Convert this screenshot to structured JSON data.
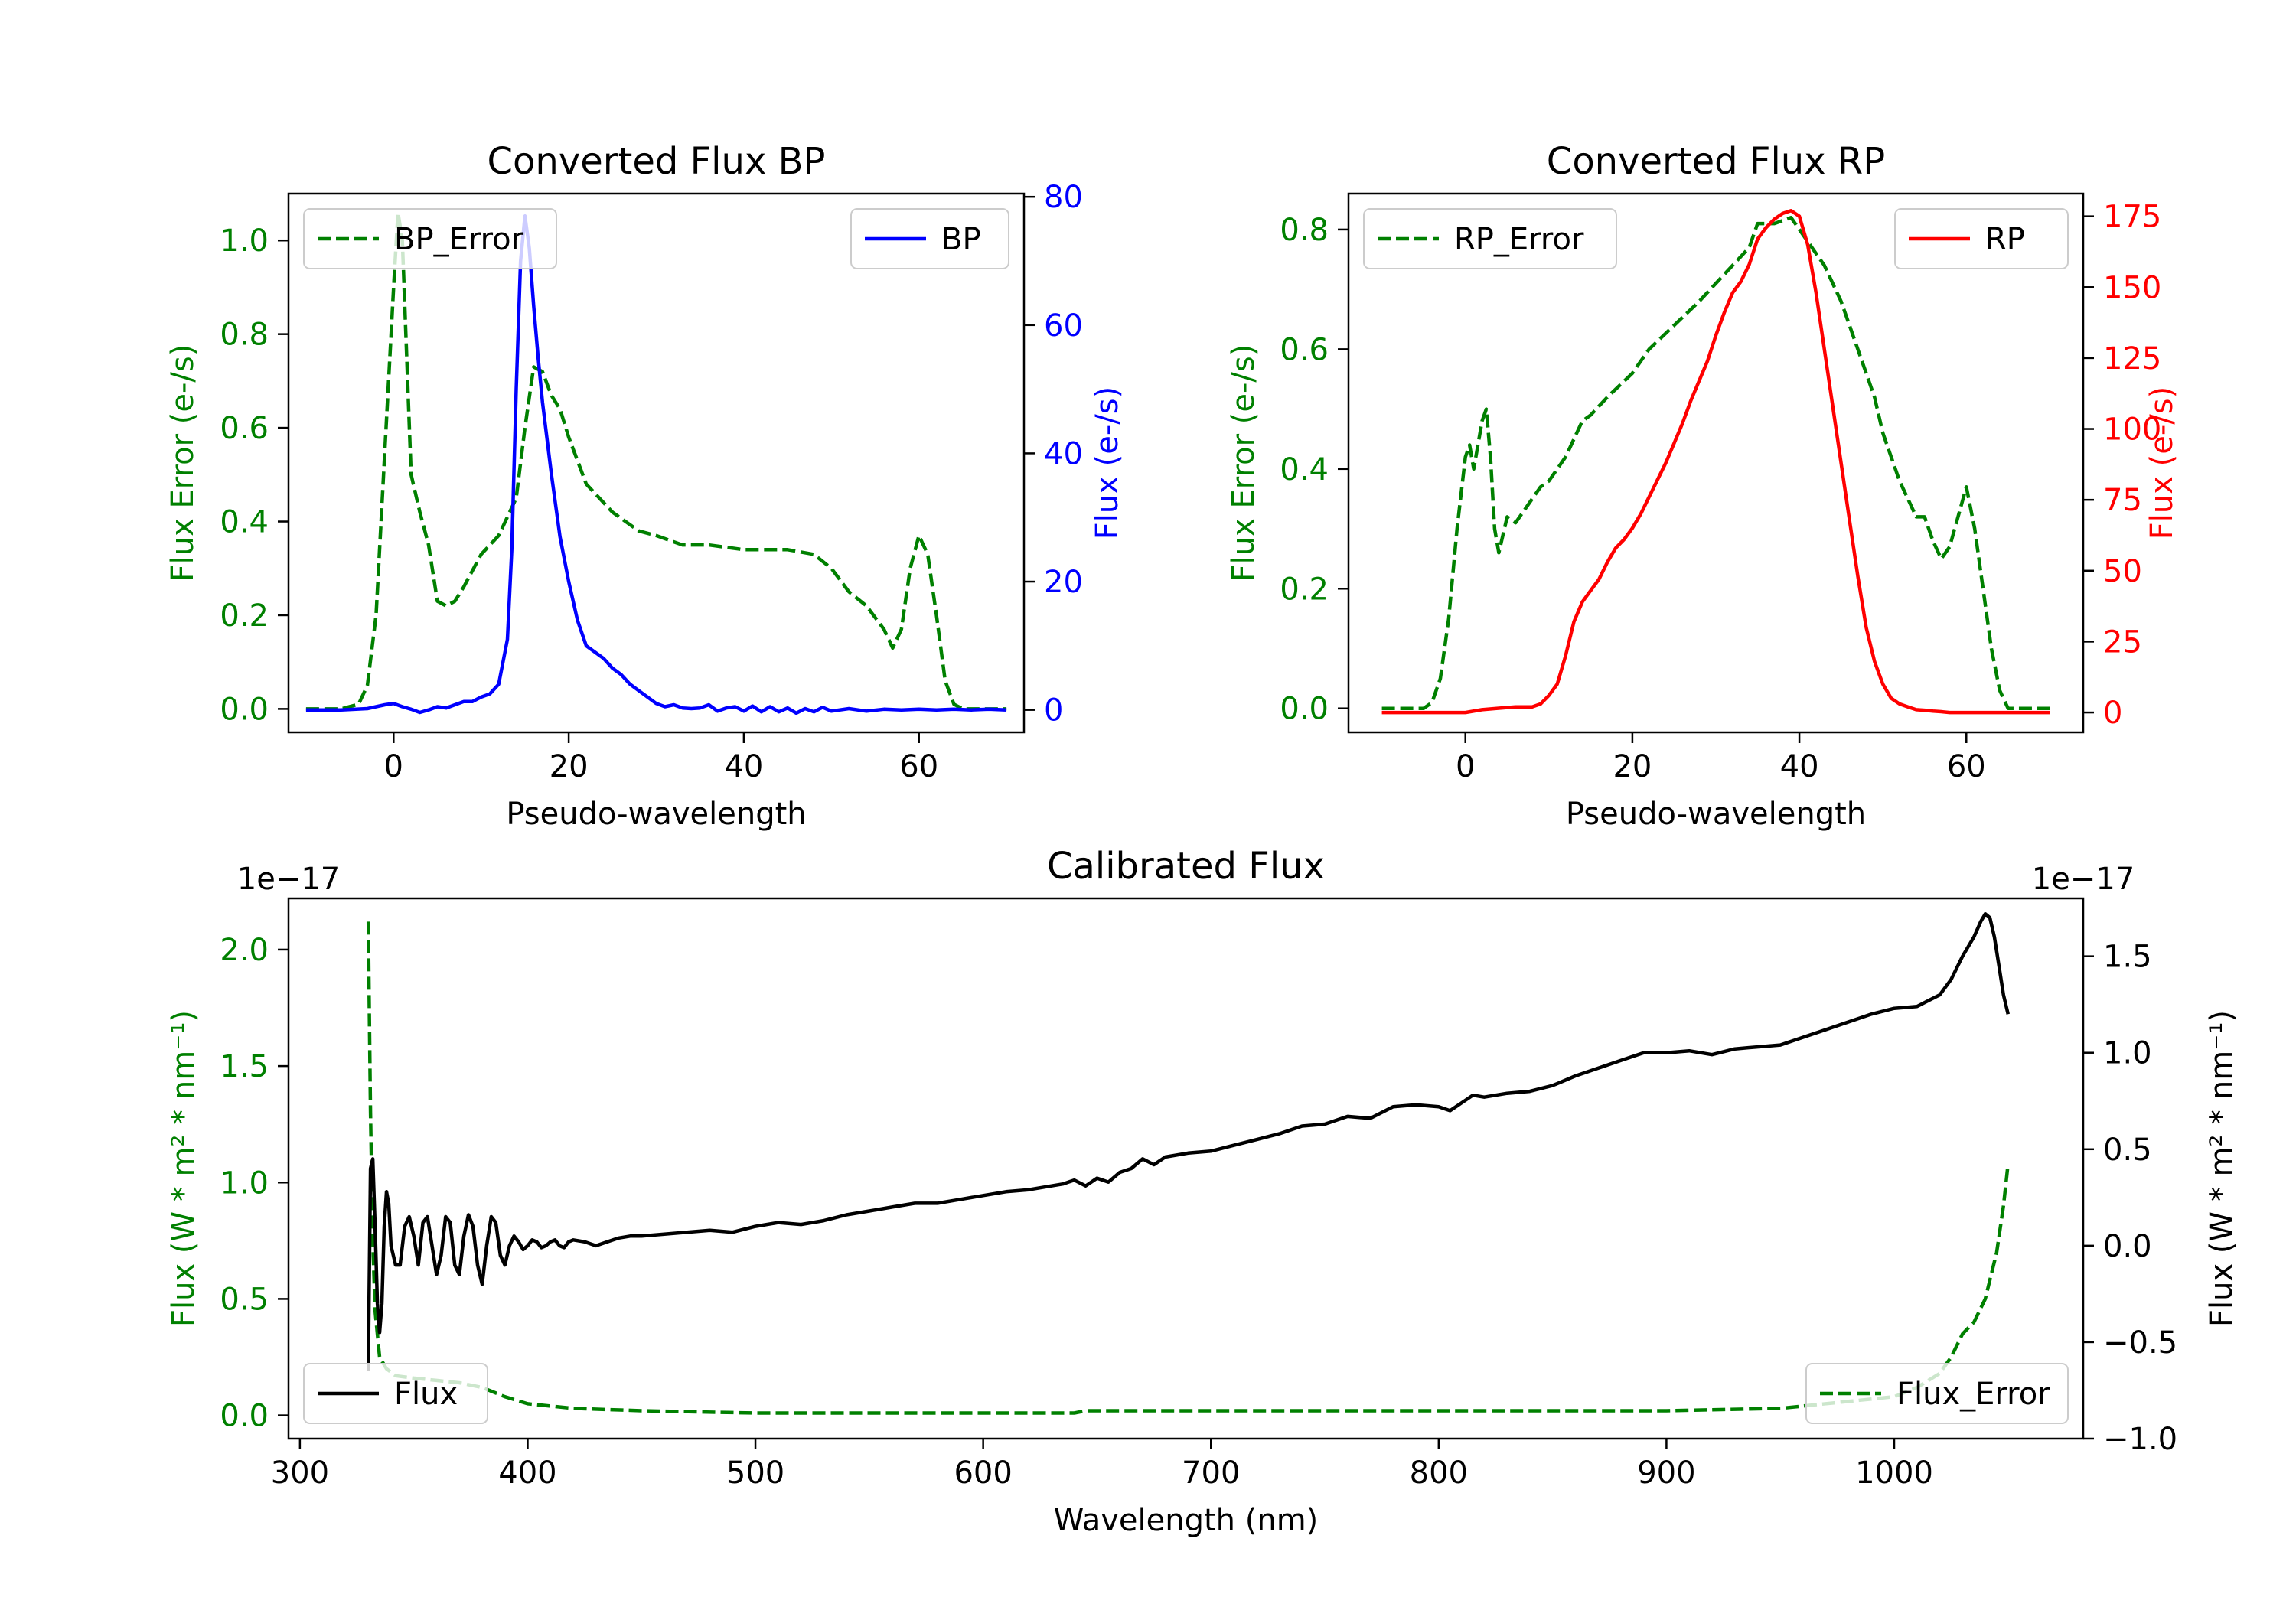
{
  "chart_data": [
    {
      "type": "line",
      "title": "Converted Flux BP",
      "xlabel": "Pseudo-wavelength",
      "ylabel_left": "Flux Error (e-/s)",
      "ylabel_right": "Flux (e-/s)",
      "xlim": [
        -12,
        72
      ],
      "ylim_left": [
        -0.05,
        1.1
      ],
      "ylim_right": [
        -3.5,
        80.5
      ],
      "xticks": [
        "0",
        "20",
        "40",
        "60"
      ],
      "yticks_left": [
        "0.0",
        "0.2",
        "0.4",
        "0.6",
        "0.8",
        "1.0"
      ],
      "yticks_right": [
        "0",
        "20",
        "40",
        "60",
        "80"
      ],
      "colors": {
        "error": "#008000",
        "flux": "#0000ff"
      },
      "legend_left": "BP_Error",
      "legend_right": "BP",
      "series": [
        {
          "name": "BP_Error",
          "axis": "left",
          "style": "dashed",
          "x": [
            -10,
            -6,
            -4,
            -3,
            -2,
            -1,
            0,
            0.5,
            1,
            2,
            3,
            4,
            5,
            6,
            7,
            8,
            10,
            12,
            14,
            15,
            16,
            17,
            18,
            19,
            20,
            22,
            25,
            28,
            30,
            33,
            36,
            40,
            45,
            48,
            50,
            52,
            54,
            56,
            57,
            58,
            59,
            60,
            61,
            62,
            63,
            64,
            65,
            70
          ],
          "y": [
            0,
            0,
            0.01,
            0.05,
            0.2,
            0.55,
            0.9,
            1.06,
            1.0,
            0.5,
            0.42,
            0.35,
            0.23,
            0.22,
            0.23,
            0.26,
            0.33,
            0.37,
            0.45,
            0.6,
            0.73,
            0.72,
            0.67,
            0.64,
            0.58,
            0.48,
            0.42,
            0.38,
            0.37,
            0.35,
            0.35,
            0.34,
            0.34,
            0.33,
            0.3,
            0.25,
            0.22,
            0.17,
            0.13,
            0.17,
            0.3,
            0.37,
            0.33,
            0.2,
            0.06,
            0.01,
            0,
            0
          ]
        },
        {
          "name": "BP",
          "axis": "right",
          "style": "solid",
          "x": [
            -10,
            -6,
            -3,
            -1,
            0,
            1,
            2,
            3,
            4,
            5,
            6,
            7,
            8,
            9,
            10,
            11,
            12,
            13,
            13.5,
            14,
            14.5,
            15,
            15.5,
            16,
            16.5,
            17,
            18,
            19,
            20,
            21,
            22,
            23,
            24,
            25,
            26,
            27,
            28,
            29,
            30,
            31,
            32,
            33,
            34,
            35,
            36,
            37,
            38,
            39,
            40,
            41,
            42,
            43,
            44,
            45,
            46,
            47,
            48,
            49,
            50,
            52,
            54,
            56,
            58,
            60,
            62,
            64,
            66,
            68,
            70
          ],
          "y": [
            0,
            0,
            0.2,
            0.8,
            1,
            0.5,
            0.1,
            -0.4,
            0,
            0.5,
            0.3,
            0.8,
            1.3,
            1.3,
            2,
            2.5,
            4,
            11,
            25,
            50,
            70,
            77,
            72,
            63,
            55,
            48,
            37,
            27,
            20,
            14,
            10,
            9,
            8,
            6.5,
            5.5,
            4,
            3,
            2,
            1,
            0.5,
            0.8,
            0.3,
            0.2,
            0.3,
            0.8,
            -0.2,
            0.3,
            0.5,
            -0.2,
            0.6,
            -0.3,
            0.5,
            -0.3,
            0.3,
            -0.5,
            0.2,
            -0.3,
            0.4,
            -0.2,
            0.2,
            -0.2,
            0.1,
            0,
            0.1,
            0,
            0.1,
            0,
            0.1,
            0
          ]
        }
      ]
    },
    {
      "type": "line",
      "title": "Converted Flux RP",
      "xlabel": "Pseudo-wavelength",
      "ylabel_left": "Flux Error (e-/s)",
      "ylabel_right": "Flux (e-/s)",
      "xlim": [
        -14,
        74
      ],
      "ylim_left": [
        -0.04,
        0.86
      ],
      "ylim_right": [
        -7,
        183
      ],
      "xticks": [
        "0",
        "20",
        "40",
        "60"
      ],
      "yticks_left": [
        "0.0",
        "0.2",
        "0.4",
        "0.6",
        "0.8"
      ],
      "yticks_right": [
        "0",
        "25",
        "50",
        "75",
        "100",
        "125",
        "150",
        "175"
      ],
      "colors": {
        "error": "#008000",
        "flux": "#ff0000"
      },
      "legend_left": "RP_Error",
      "legend_right": "RP",
      "series": [
        {
          "name": "RP_Error",
          "axis": "left",
          "style": "dashed",
          "x": [
            -10,
            -5,
            -4,
            -3,
            -2,
            -1,
            0,
            0.5,
            1,
            1.5,
            2,
            2.5,
            3,
            3.5,
            4,
            5,
            6,
            7,
            8,
            9,
            10,
            12,
            14,
            15,
            17,
            20,
            22,
            25,
            28,
            30,
            32,
            34,
            35,
            37,
            39,
            40,
            41,
            43,
            45,
            47,
            49,
            50,
            52,
            53,
            54,
            55,
            56,
            57,
            58,
            59,
            60,
            61,
            62,
            63,
            64,
            65,
            70
          ],
          "y": [
            0,
            0,
            0.01,
            0.05,
            0.15,
            0.3,
            0.42,
            0.44,
            0.4,
            0.44,
            0.48,
            0.5,
            0.42,
            0.3,
            0.26,
            0.32,
            0.31,
            0.33,
            0.35,
            0.37,
            0.38,
            0.42,
            0.48,
            0.49,
            0.52,
            0.56,
            0.6,
            0.64,
            0.68,
            0.71,
            0.74,
            0.77,
            0.81,
            0.81,
            0.82,
            0.8,
            0.78,
            0.74,
            0.68,
            0.6,
            0.52,
            0.46,
            0.38,
            0.35,
            0.32,
            0.32,
            0.28,
            0.25,
            0.27,
            0.32,
            0.37,
            0.3,
            0.2,
            0.1,
            0.03,
            0,
            0
          ]
        },
        {
          "name": "RP",
          "axis": "right",
          "style": "solid",
          "x": [
            -10,
            -5,
            -2,
            0,
            2,
            4,
            6,
            8,
            9,
            10,
            11,
            12,
            13,
            14,
            15,
            16,
            17,
            18,
            19,
            20,
            21,
            22,
            23,
            24,
            25,
            26,
            27,
            28,
            29,
            30,
            31,
            32,
            33,
            34,
            35,
            36,
            37,
            38,
            39,
            40,
            41,
            42,
            43,
            44,
            45,
            46,
            47,
            48,
            49,
            50,
            51,
            52,
            53,
            54,
            55,
            56,
            57,
            58,
            60,
            62,
            64,
            66,
            68,
            70
          ],
          "y": [
            0,
            0,
            0,
            0,
            1,
            1.5,
            2,
            2,
            3,
            6,
            10,
            20,
            32,
            39,
            43,
            47,
            53,
            58,
            61,
            65,
            70,
            76,
            82,
            88,
            95,
            102,
            110,
            117,
            124,
            133,
            141,
            148,
            152,
            158,
            167,
            171,
            174,
            176,
            177,
            175,
            165,
            148,
            128,
            108,
            88,
            68,
            48,
            30,
            18,
            10,
            5,
            3,
            2,
            1,
            0.8,
            0.5,
            0.3,
            0,
            0,
            0,
            0,
            0,
            0,
            0
          ]
        }
      ]
    },
    {
      "type": "line",
      "title": "Calibrated Flux",
      "xlabel": "Wavelength (nm)",
      "ylabel_left": "Flux (W * m² * nm⁻¹)",
      "ylabel_right": "Flux (W * m² * nm⁻¹)",
      "offset_left": "1e−17",
      "offset_right": "1e−17",
      "xlim": [
        295,
        1083
      ],
      "ylim_left": [
        -0.1,
        2.22
      ],
      "ylim_right": [
        -1.0,
        1.8
      ],
      "xticks": [
        "300",
        "400",
        "500",
        "600",
        "700",
        "800",
        "900",
        "1000"
      ],
      "yticks_left": [
        "0.0",
        "0.5",
        "1.0",
        "1.5",
        "2.0"
      ],
      "yticks_right": [
        "−1.0",
        "−0.5",
        "0.0",
        "0.5",
        "1.0",
        "1.5"
      ],
      "colors": {
        "error": "#008000",
        "flux": "#000000"
      },
      "legend_left": "Flux",
      "legend_right": "Flux_Error",
      "series": [
        {
          "name": "Flux_Error",
          "axis": "left",
          "style": "dashed",
          "x": [
            330,
            331,
            332,
            333,
            335,
            338,
            342,
            350,
            360,
            370,
            380,
            390,
            400,
            420,
            450,
            500,
            600,
            640,
            645,
            700,
            800,
            900,
            950,
            1000,
            1010,
            1020,
            1025,
            1030,
            1035,
            1040,
            1045,
            1048,
            1050
          ],
          "y": [
            2.12,
            1.3,
            0.75,
            0.45,
            0.25,
            0.2,
            0.17,
            0.16,
            0.15,
            0.14,
            0.12,
            0.08,
            0.05,
            0.03,
            0.02,
            0.01,
            0.01,
            0.01,
            0.02,
            0.02,
            0.02,
            0.02,
            0.03,
            0.08,
            0.12,
            0.18,
            0.25,
            0.35,
            0.4,
            0.5,
            0.7,
            0.9,
            1.08
          ]
        },
        {
          "name": "Flux",
          "axis": "right",
          "style": "solid",
          "x": [
            330,
            331,
            332,
            333,
            334,
            335,
            336,
            337,
            338,
            339,
            340,
            342,
            344,
            346,
            348,
            350,
            352,
            354,
            356,
            358,
            360,
            362,
            364,
            366,
            368,
            370,
            372,
            374,
            376,
            378,
            380,
            382,
            384,
            386,
            388,
            390,
            392,
            394,
            396,
            398,
            400,
            402,
            404,
            406,
            408,
            410,
            412,
            414,
            416,
            418,
            420,
            425,
            430,
            435,
            440,
            445,
            450,
            460,
            470,
            480,
            490,
            500,
            510,
            520,
            530,
            540,
            550,
            560,
            570,
            580,
            590,
            600,
            610,
            620,
            630,
            635,
            640,
            645,
            650,
            655,
            660,
            665,
            670,
            675,
            680,
            690,
            700,
            710,
            720,
            730,
            740,
            750,
            760,
            770,
            780,
            790,
            800,
            805,
            810,
            815,
            820,
            830,
            840,
            850,
            860,
            870,
            880,
            890,
            900,
            910,
            915,
            920,
            930,
            940,
            950,
            960,
            970,
            980,
            990,
            1000,
            1010,
            1015,
            1020,
            1025,
            1030,
            1035,
            1038,
            1040,
            1042,
            1044,
            1046,
            1048,
            1050
          ],
          "y": [
            -0.65,
            0.4,
            0.45,
            0.1,
            -0.3,
            -0.45,
            -0.3,
            0.1,
            0.28,
            0.22,
            0,
            -0.1,
            -0.1,
            0.1,
            0.15,
            0.05,
            -0.1,
            0.12,
            0.15,
            0.0,
            -0.15,
            -0.05,
            0.15,
            0.12,
            -0.1,
            -0.15,
            0.05,
            0.16,
            0.1,
            -0.1,
            -0.2,
            0.0,
            0.15,
            0.12,
            -0.05,
            -0.1,
            0.0,
            0.05,
            0.02,
            -0.02,
            0.0,
            0.03,
            0.02,
            -0.01,
            0.0,
            0.02,
            0.03,
            0.0,
            -0.01,
            0.02,
            0.03,
            0.02,
            0.0,
            0.02,
            0.04,
            0.05,
            0.05,
            0.06,
            0.07,
            0.08,
            0.07,
            0.1,
            0.12,
            0.11,
            0.13,
            0.16,
            0.18,
            0.2,
            0.22,
            0.22,
            0.24,
            0.26,
            0.28,
            0.29,
            0.31,
            0.32,
            0.34,
            0.31,
            0.35,
            0.33,
            0.38,
            0.4,
            0.45,
            0.42,
            0.46,
            0.48,
            0.49,
            0.52,
            0.55,
            0.58,
            0.62,
            0.63,
            0.67,
            0.66,
            0.72,
            0.73,
            0.72,
            0.7,
            0.74,
            0.78,
            0.77,
            0.79,
            0.8,
            0.83,
            0.88,
            0.92,
            0.96,
            1.0,
            1.0,
            1.01,
            1.0,
            0.99,
            1.02,
            1.03,
            1.04,
            1.08,
            1.12,
            1.16,
            1.2,
            1.23,
            1.24,
            1.27,
            1.3,
            1.38,
            1.5,
            1.6,
            1.68,
            1.72,
            1.7,
            1.6,
            1.45,
            1.3,
            1.2
          ]
        }
      ]
    }
  ]
}
